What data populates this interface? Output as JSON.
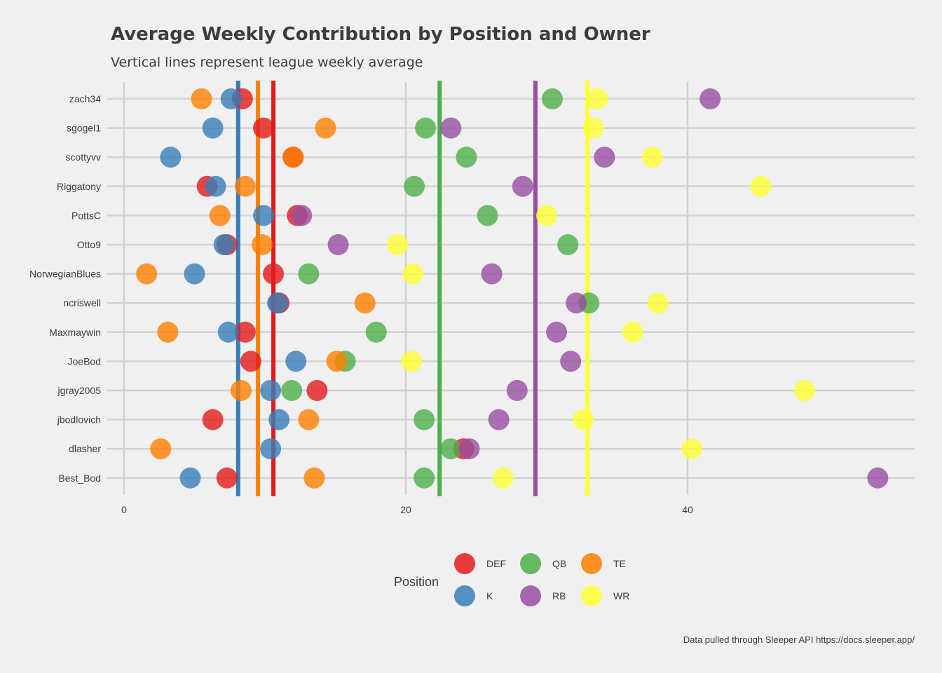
{
  "chart_data": {
    "type": "scatter",
    "title": "Average Weekly Contribution by Position and Owner",
    "subtitle": "Vertical lines represent league weekly average",
    "caption": "Data pulled through Sleeper API https://docs.sleeper.app/",
    "xlabel": "",
    "ylabel": "",
    "xlim": [
      0,
      56
    ],
    "x_ticks": [
      0,
      20,
      40
    ],
    "grid": true,
    "legend_position": "bottom",
    "legend_title": "Position",
    "categories": [
      "zach34",
      "sgogel1",
      "scottyvv",
      "Riggatony",
      "PottsC",
      "Otto9",
      "NorwegianBlues",
      "ncriswell",
      "Maxmaywin",
      "JoeBod",
      "jgray2005",
      "jbodlovich",
      "dlasher",
      "Best_Bod"
    ],
    "positions": [
      "DEF",
      "QB",
      "TE",
      "K",
      "RB",
      "WR"
    ],
    "colors": {
      "DEF": "#e41a1c",
      "K": "#377eb8",
      "QB": "#4daf4a",
      "RB": "#984ea3",
      "TE": "#ff7f00",
      "WR": "#ffff33"
    },
    "league_averages": {
      "K": 8.1,
      "TE": 9.5,
      "DEF": 10.6,
      "QB": 22.4,
      "RB": 29.2,
      "WR": 32.9
    },
    "series": [
      {
        "name": "DEF",
        "values": [
          8.4,
          9.9,
          12.0,
          5.9,
          12.3,
          7.3,
          10.6,
          11.0,
          8.6,
          9.0,
          13.7,
          6.3,
          24.1,
          7.3
        ]
      },
      {
        "name": "K",
        "values": [
          7.6,
          6.3,
          3.3,
          6.5,
          9.9,
          7.1,
          5.0,
          10.9,
          7.4,
          12.2,
          10.4,
          11.0,
          10.4,
          4.7
        ]
      },
      {
        "name": "QB",
        "values": [
          30.4,
          21.4,
          24.3,
          20.6,
          25.8,
          31.5,
          13.1,
          33.0,
          17.9,
          15.7,
          11.9,
          21.3,
          23.2,
          21.3
        ]
      },
      {
        "name": "RB",
        "values": [
          41.6,
          23.2,
          34.1,
          28.3,
          12.6,
          15.2,
          26.1,
          32.1,
          30.7,
          31.7,
          27.9,
          26.6,
          24.5,
          53.5
        ]
      },
      {
        "name": "TE",
        "values": [
          5.5,
          14.3,
          12.0,
          8.6,
          6.8,
          9.8,
          1.6,
          17.1,
          3.1,
          15.1,
          8.3,
          13.1,
          2.6,
          13.5
        ]
      },
      {
        "name": "WR",
        "values": [
          33.6,
          33.3,
          37.5,
          45.2,
          30.0,
          19.4,
          20.5,
          37.9,
          36.1,
          20.4,
          48.3,
          32.6,
          40.3,
          26.9
        ]
      }
    ]
  }
}
